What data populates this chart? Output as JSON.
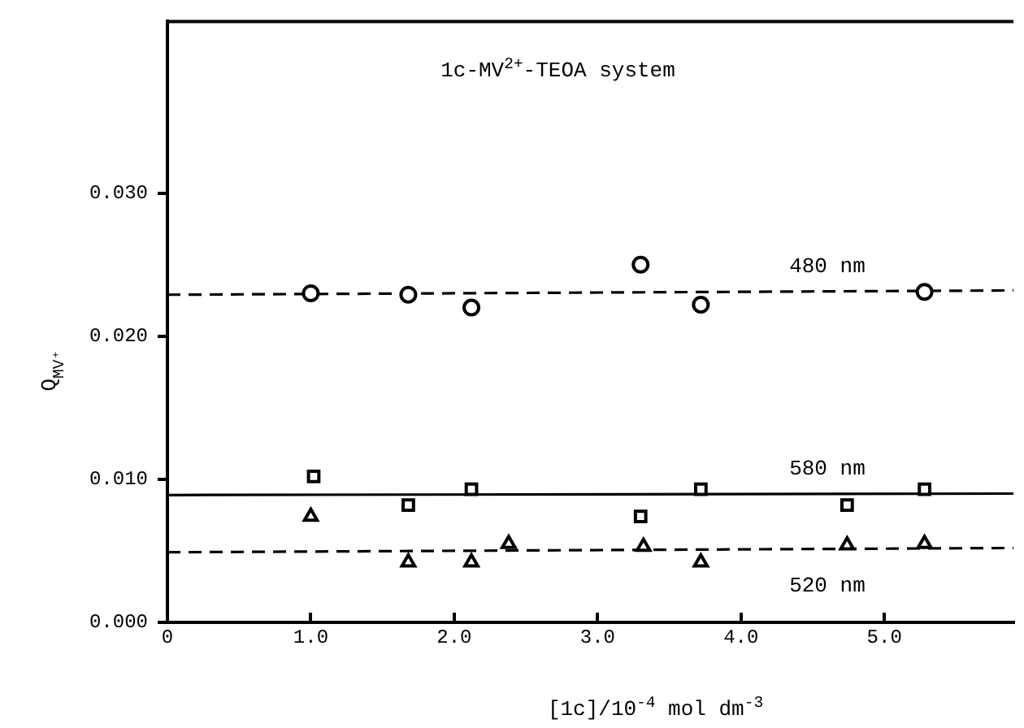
{
  "chart_data": {
    "type": "scatter",
    "title": "1c-MV$^{2+}$-TEOA system",
    "xlabel": "[1c]/10$^{-4}$ mol dm$^{-3}$",
    "ylabel": "Q$_{MV⁺}$",
    "xlim": [
      0,
      5.9
    ],
    "xticks": [
      0,
      {
        "value": 1,
        "label": "1.0"
      },
      {
        "value": 2,
        "label": "2.0"
      },
      {
        "value": 3,
        "label": "3.0"
      },
      {
        "value": 4,
        "label": "4.0"
      },
      {
        "value": 5,
        "label": "5.0"
      }
    ],
    "ylim": [
      0,
      0.042
    ],
    "yticks": [
      {
        "value": 0,
        "label": "0.000"
      },
      {
        "value": 0.01,
        "label": "0.010"
      },
      {
        "value": 0.02,
        "label": "0.020"
      },
      {
        "value": 0.03,
        "label": "0.030"
      }
    ],
    "grid": false,
    "legend": false,
    "series": [
      {
        "marker": "circle",
        "color": "#000000",
        "x": [
          1.0,
          1.68,
          2.12,
          3.3,
          3.72,
          5.28
        ],
        "values": [
          0.023,
          0.0229,
          0.022,
          0.025,
          0.0222,
          0.0231
        ]
      },
      {
        "marker": "square",
        "color": "#000000",
        "x": [
          1.02,
          1.68,
          2.12,
          3.3,
          3.72,
          4.74,
          5.28
        ],
        "values": [
          0.0102,
          0.0082,
          0.0093,
          0.0074,
          0.0093,
          0.0082,
          0.0093
        ]
      },
      {
        "marker": "triangle",
        "color": "#000000",
        "x": [
          1.0,
          1.68,
          2.12,
          2.38,
          3.32,
          3.72,
          4.74,
          5.28
        ],
        "values": [
          0.0074,
          0.0042,
          0.0042,
          0.0055,
          0.0053,
          0.0042,
          0.0054,
          0.0055
        ]
      },
      {
        "type": "line",
        "name": "480 nm",
        "marker": "none",
        "line_style": "dashed",
        "color": "#000000",
        "x": [
          0,
          5.9
        ],
        "values": [
          0.0229,
          0.0232
        ]
      },
      {
        "type": "line",
        "name": "580 nm",
        "marker": "none",
        "line_style": "solid",
        "color": "#000000",
        "x": [
          0,
          5.9
        ],
        "values": [
          0.0089,
          0.009
        ]
      },
      {
        "type": "line",
        "name": "520 nm",
        "marker": "none",
        "line_style": "dashed",
        "color": "#000000",
        "x": [
          0,
          5.9
        ],
        "values": [
          0.0049,
          0.0052
        ]
      }
    ]
  }
}
